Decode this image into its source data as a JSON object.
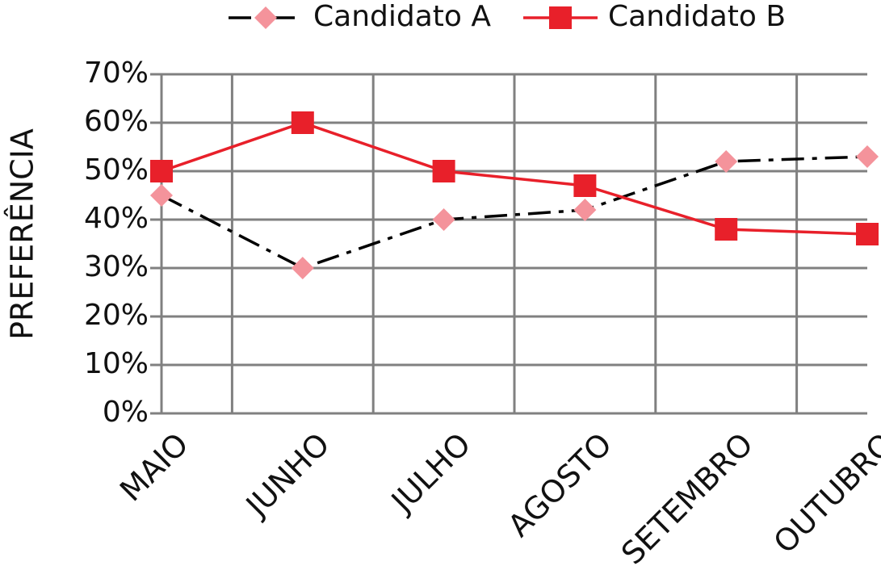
{
  "chart_data": {
    "type": "line",
    "y_label": "PREFERÊNCIA",
    "categories": [
      "MAIO",
      "JUNHO",
      "JULHO",
      "AGOSTO",
      "SETEMBRO",
      "OUTUBRO"
    ],
    "series": [
      {
        "name": "Candidato A",
        "color": "#000000",
        "marker_color": "#f4939b",
        "marker": "diamond",
        "dashed": true,
        "values": [
          45,
          30,
          40,
          42,
          52,
          53
        ]
      },
      {
        "name": "Candidato B",
        "color": "#e8202a",
        "marker_color": "#e8202a",
        "marker": "square",
        "dashed": false,
        "values": [
          50,
          60,
          50,
          47,
          38,
          37
        ]
      }
    ],
    "ylim": [
      0,
      70
    ],
    "yticks": [
      {
        "value": 0,
        "label": "0%"
      },
      {
        "value": 10,
        "label": "10%"
      },
      {
        "value": 20,
        "label": "20%"
      },
      {
        "value": 30,
        "label": "30%"
      },
      {
        "value": 40,
        "label": "40%"
      },
      {
        "value": 50,
        "label": "50%"
      },
      {
        "value": 60,
        "label": "60%"
      },
      {
        "value": 70,
        "label": "70%"
      }
    ],
    "grid": true,
    "legend": "top"
  }
}
